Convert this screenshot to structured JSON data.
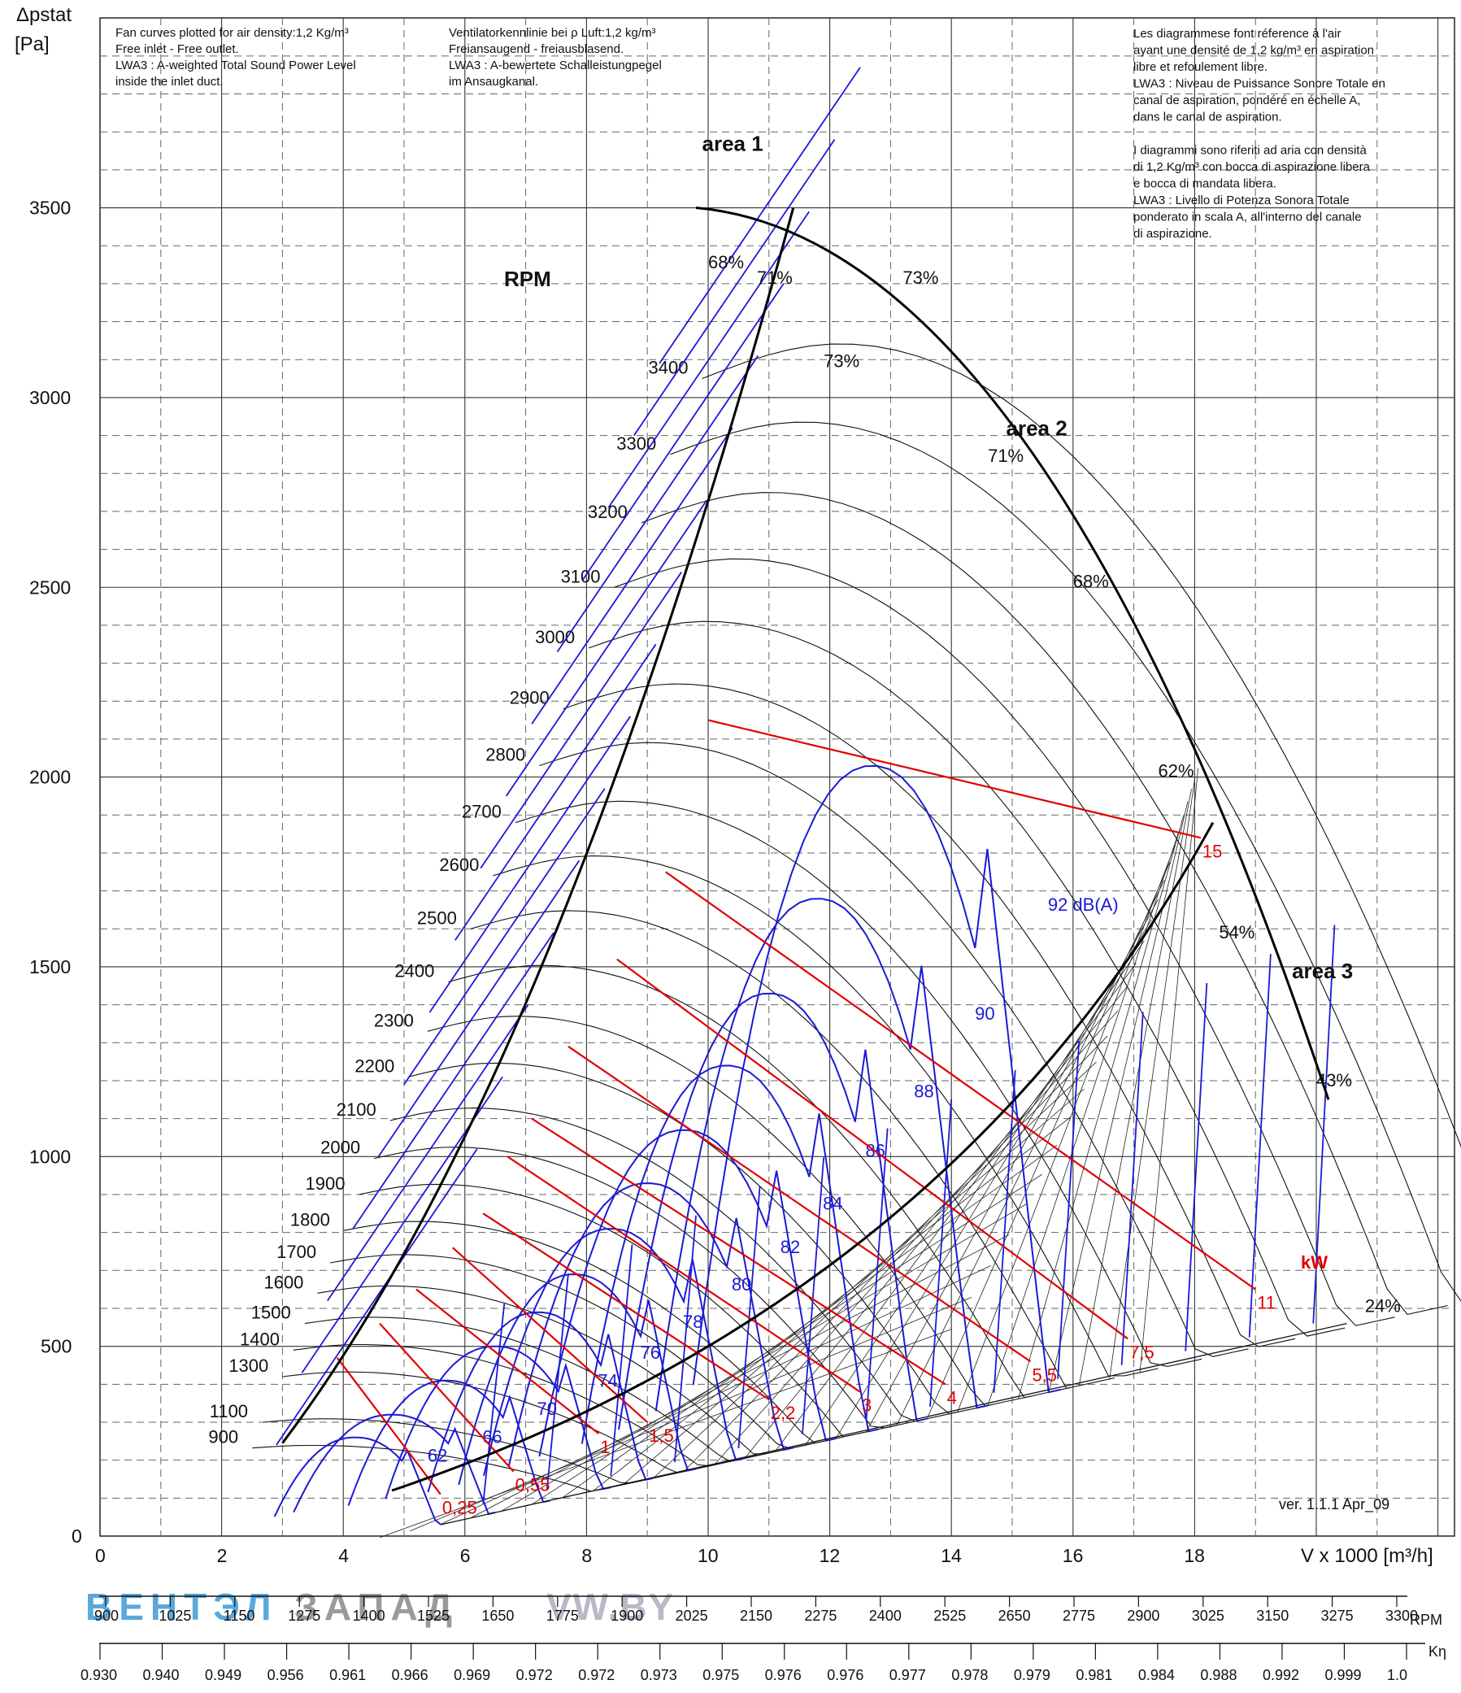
{
  "chart_data": {
    "type": "line",
    "ylabel_top": "Δpstat",
    "ylabel_unit": "[Pa]",
    "xlabel": "V x 1000 [m³/h]",
    "xlim": [
      0,
      22
    ],
    "ylim": [
      0,
      3800
    ],
    "x_ticks": [
      "0",
      "2",
      "4",
      "6",
      "8",
      "10",
      "12",
      "14",
      "16",
      "18"
    ],
    "y_ticks": [
      "0",
      "500",
      "1000",
      "1500",
      "2000",
      "2500",
      "3000",
      "3500"
    ],
    "notes_en": [
      "Fan curves plotted for air density:1,2 Kg/m³",
      "Free inlet - Free outlet.",
      "LWA3 : A-weighted Total Sound Power Level",
      "inside the inlet duct."
    ],
    "notes_de": [
      "Ventilatorkennlinie bei ρ Luft:1,2 kg/m³",
      "Freiansaugend - freiausblasend.",
      "LWA3 : A-bewertete Schalleistungpegel",
      "im Ansaugkanal."
    ],
    "notes_fr_it": [
      "Les diagrammese font réference à l'air",
      "ayant une densité de 1,2 kg/m³ en aspiration",
      "libre et refoulement libre.",
      "LWA3 : Niveau de Puissance Sonore Totale en",
      "canal de aspiration, pondéré en échelle A,",
      "dans le canal de aspiration.",
      "",
      "I diagrammi sono riferiti ad aria con densità",
      "di 1,2 Kg/m³ con bocca di aspirazione libera",
      "e bocca di mandata libera.",
      "LWA3 : Livello di Potenza Sonora Totale",
      "ponderato in scala A, all'interno del canale",
      "di aspirazione."
    ],
    "rpm_title": "RPM",
    "rpm_curves": [
      {
        "rpm": "900",
        "p_start": 232
      },
      {
        "rpm": "1100",
        "p_start": 300
      },
      {
        "rpm": "1300",
        "p_start": 420
      },
      {
        "rpm": "1400",
        "p_start": 490
      },
      {
        "rpm": "1500",
        "p_start": 560
      },
      {
        "rpm": "1600",
        "p_start": 640
      },
      {
        "rpm": "1700",
        "p_start": 720
      },
      {
        "rpm": "1800",
        "p_start": 805
      },
      {
        "rpm": "1900",
        "p_start": 900
      },
      {
        "rpm": "2000",
        "p_start": 995
      },
      {
        "rpm": "2100",
        "p_start": 1095
      },
      {
        "rpm": "2200",
        "p_start": 1210
      },
      {
        "rpm": "2300",
        "p_start": 1330
      },
      {
        "rpm": "2400",
        "p_start": 1460
      },
      {
        "rpm": "2500",
        "p_start": 1600
      },
      {
        "rpm": "2600",
        "p_start": 1740
      },
      {
        "rpm": "2700",
        "p_start": 1880
      },
      {
        "rpm": "2800",
        "p_start": 2030
      },
      {
        "rpm": "2900",
        "p_start": 2180
      },
      {
        "rpm": "3000",
        "p_start": 2340
      },
      {
        "rpm": "3100",
        "p_start": 2500
      },
      {
        "rpm": "3200",
        "p_start": 2670
      },
      {
        "rpm": "3300",
        "p_start": 2850
      },
      {
        "rpm": "3400",
        "p_start": 3050
      }
    ],
    "efficiency_labels": [
      "68%",
      "71%",
      "73%",
      "73%",
      "71%",
      "68%",
      "62%",
      "54%",
      "43%",
      "24%"
    ],
    "db_labels": [
      "62",
      "66",
      "70",
      "74",
      "76",
      "78",
      "80",
      "82",
      "84",
      "86",
      "88",
      "90",
      "92 dB(A)"
    ],
    "kw_labels": [
      "0,25",
      "0,55",
      "1",
      "1,5",
      "2,2",
      "3",
      "4",
      "5,5",
      "7,5",
      "11",
      "15"
    ],
    "kw_unit": "kW",
    "areas": [
      "area 1",
      "area 2",
      "area 3"
    ],
    "version": "ver. 1.1.1 Apr_09",
    "rpm_scale_label": "RPM",
    "rpm_scale": [
      "900",
      "1025",
      "1150",
      "1275",
      "1400",
      "1525",
      "1650",
      "1775",
      "1900",
      "2025",
      "2150",
      "2275",
      "2400",
      "2525",
      "2650",
      "2775",
      "2900",
      "3025",
      "3150",
      "3275",
      "3300"
    ],
    "keta_scale_label": "Kη",
    "keta_scale": [
      "0.930",
      "0.940",
      "0.949",
      "0.956",
      "0.961",
      "0.966",
      "0.969",
      "0.972",
      "0.972",
      "0.973",
      "0.975",
      "0.976",
      "0.976",
      "0.977",
      "0.978",
      "0.979",
      "0.981",
      "0.984",
      "0.988",
      "0.992",
      "0.999",
      "1.0"
    ],
    "watermark": [
      "ВЕНТЭЛ",
      "ЗАПАД",
      "VW.BY"
    ],
    "colors": {
      "rpm_curve": "#111111",
      "sound_curve": "#1a1ad6",
      "power_line": "#e00000",
      "grid_solid": "#222222",
      "grid_dashed": "#555555",
      "watermark_blue": "#5aa8dc",
      "watermark_grey": "#9a9a9a"
    }
  }
}
